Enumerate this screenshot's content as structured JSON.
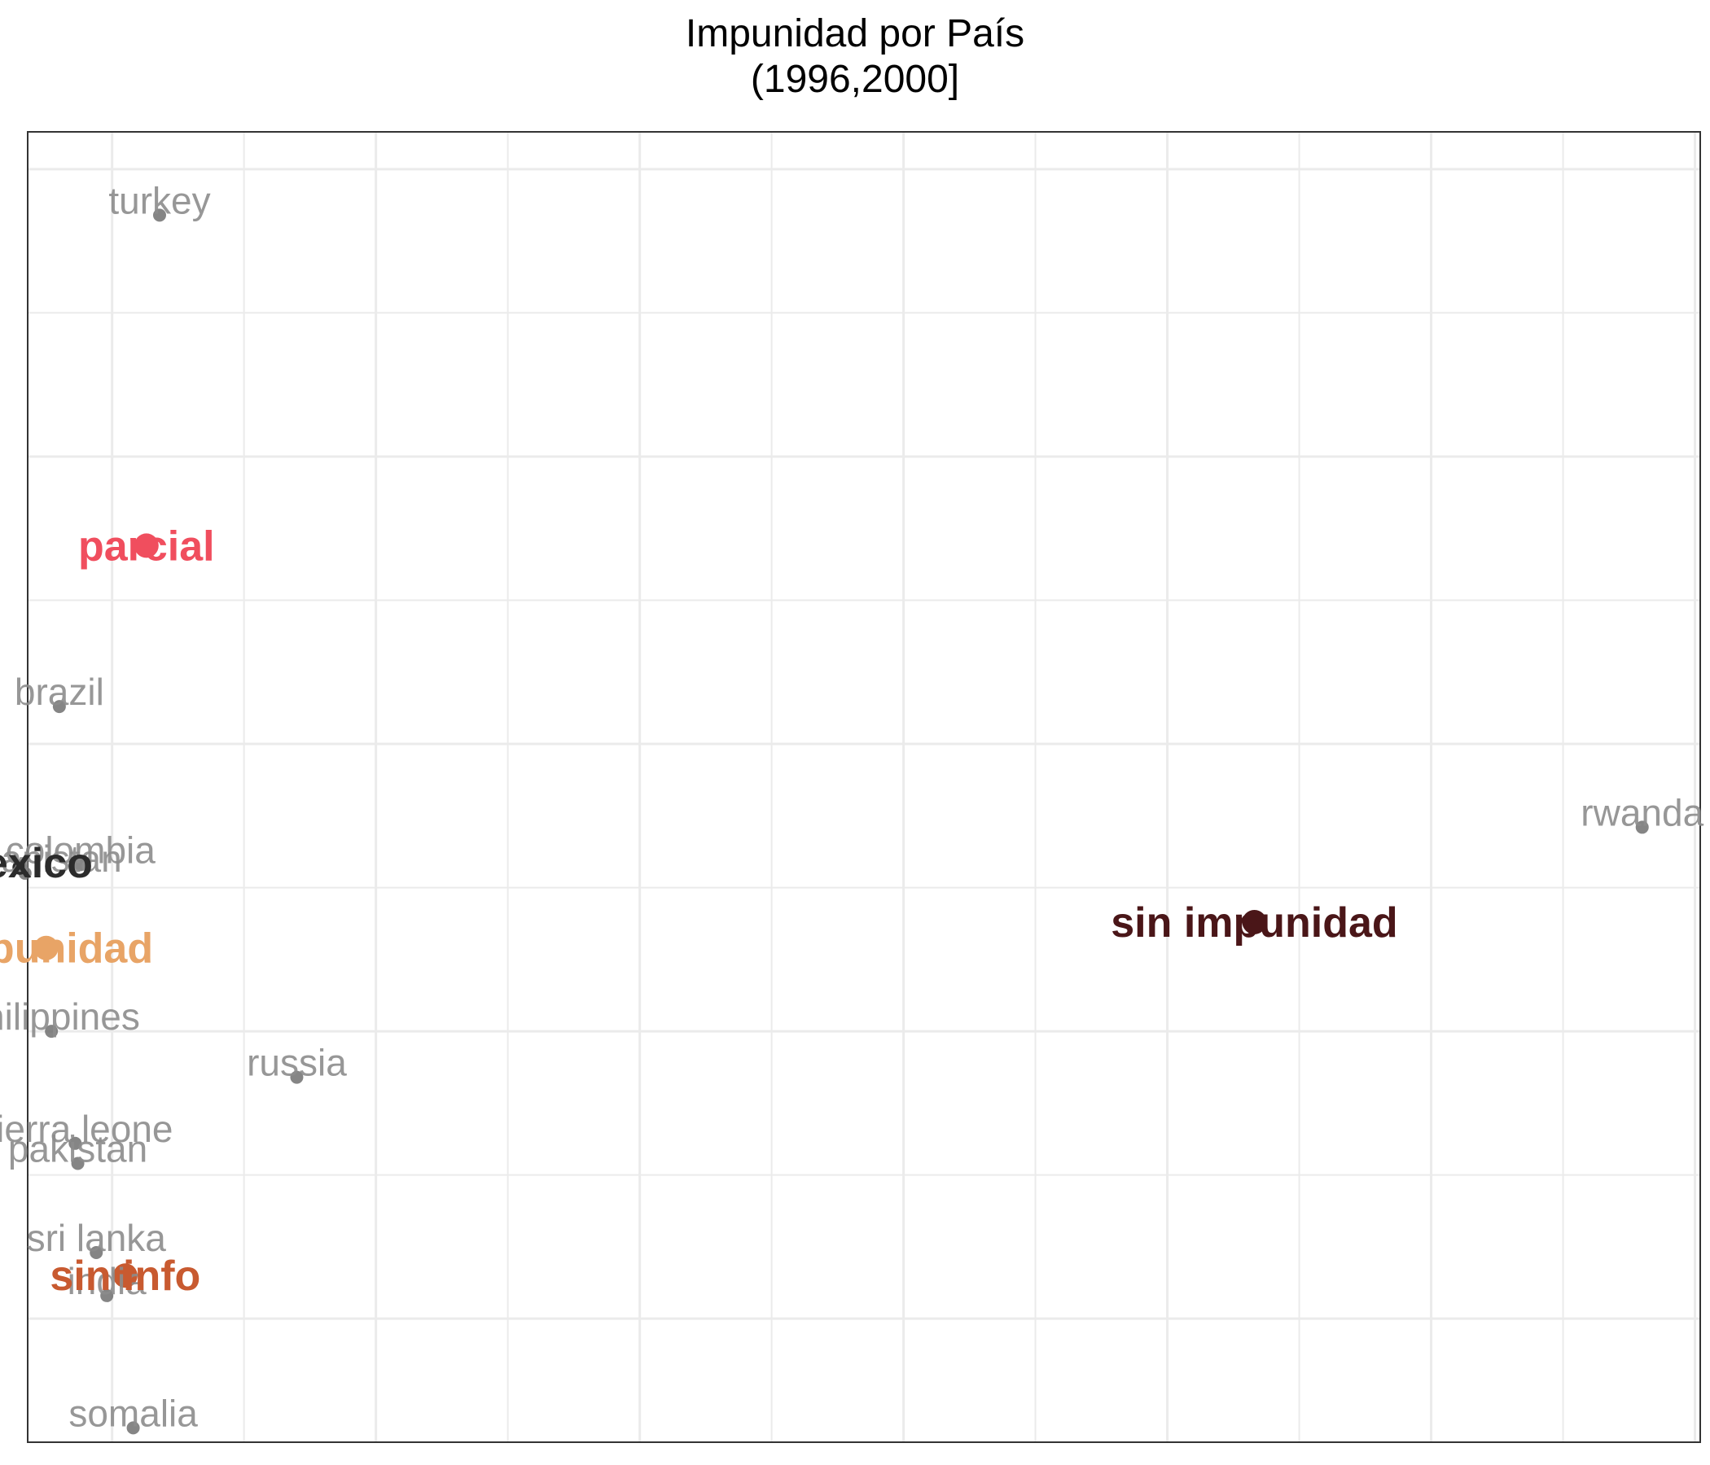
{
  "title": "Impunidad por País",
  "subtitle": "(1996,2000]",
  "chart_data": {
    "type": "scatter",
    "title": "Impunidad por País",
    "subtitle": "(1996,2000]",
    "xlabel": "",
    "ylabel": "",
    "xlim": [
      -0.32,
      6.02
    ],
    "ylim": [
      -1.43,
      3.13
    ],
    "grid": true,
    "legend": "none",
    "countries": [
      {
        "name": "turkey",
        "x": 0.18,
        "y": 2.84
      },
      {
        "name": "brazil",
        "x": -0.2,
        "y": 1.13
      },
      {
        "name": "rwanda",
        "x": 5.8,
        "y": 0.71
      },
      {
        "name": "colombia",
        "x": -0.12,
        "y": 0.58
      },
      {
        "name": "afghanistan",
        "x": -0.33,
        "y": 0.55
      },
      {
        "name": "philippines",
        "x": -0.23,
        "y": 0.0
      },
      {
        "name": "russia",
        "x": 0.7,
        "y": -0.16
      },
      {
        "name": "sierra leone",
        "x": -0.14,
        "y": -0.39
      },
      {
        "name": "pakistan",
        "x": -0.13,
        "y": -0.46
      },
      {
        "name": "sri lanka",
        "x": -0.06,
        "y": -0.77
      },
      {
        "name": "india",
        "x": -0.02,
        "y": -0.92
      },
      {
        "name": "somalia",
        "x": 0.08,
        "y": -1.38
      }
    ],
    "highlight": {
      "name": "mexico",
      "x": -0.35,
      "y": 0.57,
      "color": "#2b2b2b"
    },
    "groups": [
      {
        "name": "parcial",
        "x": 0.13,
        "y": 1.69,
        "color": "#f04e5e"
      },
      {
        "name": "impunidad",
        "x": -0.25,
        "y": 0.29,
        "color": "#e8a466"
      },
      {
        "name": "sin impunidad",
        "x": 4.33,
        "y": 0.38,
        "color": "#4a1618"
      },
      {
        "name": "sin info",
        "x": 0.05,
        "y": -0.85,
        "color": "#c85a30"
      }
    ],
    "country_color": "#8c8c8c"
  }
}
